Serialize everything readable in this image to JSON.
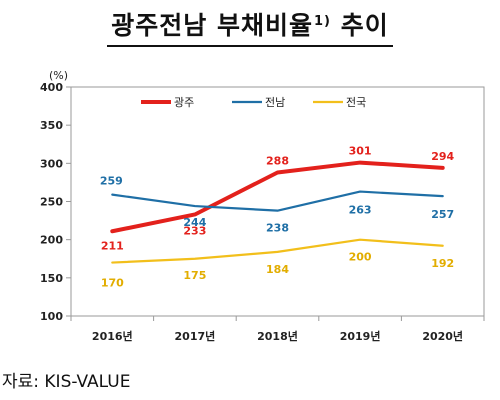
{
  "title": {
    "main": "광주전남 부채비율",
    "sup": "1)",
    "suffix": "추이"
  },
  "source": "자료: KIS-VALUE",
  "chart_data": {
    "type": "line",
    "categories": [
      "2016년",
      "2017년",
      "2018년",
      "2019년",
      "2020년"
    ],
    "series": [
      {
        "name": "광주",
        "values": [
          211,
          233,
          288,
          301,
          294
        ],
        "color": "#e3211c"
      },
      {
        "name": "전남",
        "values": [
          259,
          244,
          238,
          263,
          257
        ],
        "color": "#1f6fa6"
      },
      {
        "name": "전국",
        "values": [
          170,
          175,
          184,
          200,
          192
        ],
        "color": "#f2bf1b"
      }
    ],
    "unit": "(%)",
    "ylim": [
      100,
      400
    ],
    "yticks": [
      100,
      150,
      200,
      250,
      300,
      350,
      400
    ],
    "grid": false,
    "legend": "top-center"
  }
}
